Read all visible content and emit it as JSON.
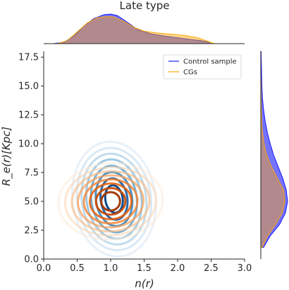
{
  "chart_data": {
    "type": "kde-joint",
    "title": "Late type",
    "xlabel": "n(r)",
    "ylabel": "R_e(r)[Kpc]",
    "xlim": [
      0.0,
      3.0
    ],
    "ylim": [
      0.0,
      18.0
    ],
    "xticks": [
      "0.0",
      "0.5",
      "1.0",
      "1.5",
      "2.0",
      "2.5",
      "3.0"
    ],
    "yticks": [
      "0.0",
      "2.5",
      "5.0",
      "7.5",
      "10.0",
      "12.5",
      "15.0",
      "17.5"
    ],
    "grid": false,
    "legend": {
      "placement": "top-right"
    },
    "series": [
      {
        "name": "Control sample",
        "line_color": "#1a1aff",
        "fill_color": "#0000ff",
        "contour_palette": [
          "#d6e6f4",
          "#c2dbee",
          "#a3cce3",
          "#7fb6d8",
          "#569fce",
          "#2f83bf",
          "#155fa6",
          "#084c92"
        ],
        "center": {
          "x": 1.05,
          "y": 5.2
        },
        "contours": [
          {
            "rx": 0.62,
            "ry": 5.0
          },
          {
            "rx": 0.55,
            "ry": 4.45
          },
          {
            "rx": 0.48,
            "ry": 3.95
          },
          {
            "rx": 0.41,
            "ry": 3.45
          },
          {
            "rx": 0.34,
            "ry": 2.9
          },
          {
            "rx": 0.27,
            "ry": 2.35
          },
          {
            "rx": 0.2,
            "ry": 1.8
          },
          {
            "rx": 0.13,
            "ry": 1.2
          }
        ],
        "marginal_x": {
          "x": [
            0.15,
            0.3,
            0.45,
            0.6,
            0.75,
            0.9,
            1.0,
            1.1,
            1.25,
            1.4,
            1.6,
            1.8,
            2.0,
            2.2,
            2.35,
            2.45,
            2.5
          ],
          "density": [
            0.0,
            0.05,
            0.25,
            0.6,
            0.85,
            0.98,
            1.0,
            0.95,
            0.72,
            0.48,
            0.33,
            0.26,
            0.2,
            0.14,
            0.1,
            0.05,
            0.0
          ]
        },
        "marginal_y": {
          "y": [
            1.0,
            2.0,
            3.0,
            4.0,
            5.0,
            6.0,
            7.0,
            8.0,
            9.0,
            10.0,
            11.0,
            12.0,
            13.0,
            14.0,
            15.0,
            16.0,
            17.0,
            18.0
          ],
          "density": [
            0.1,
            0.35,
            0.7,
            0.92,
            1.0,
            0.95,
            0.82,
            0.65,
            0.48,
            0.35,
            0.24,
            0.16,
            0.1,
            0.06,
            0.04,
            0.03,
            0.02,
            0.01
          ]
        }
      },
      {
        "name": "CGs",
        "line_color": "#ffa500",
        "fill_color": "#ffa500",
        "contour_palette": [
          "#fde9d9",
          "#fdd5b3",
          "#fdbd87",
          "#fca05b",
          "#f7822f",
          "#e65f0d",
          "#c94a03",
          "#a33a04"
        ],
        "center": {
          "x": 1.0,
          "y": 5.0
        },
        "contours": [
          {
            "rx": 0.78,
            "ry": 3.3
          },
          {
            "rx": 0.68,
            "ry": 2.95
          },
          {
            "rx": 0.58,
            "ry": 2.6
          },
          {
            "rx": 0.49,
            "ry": 2.25
          },
          {
            "rx": 0.4,
            "ry": 1.9
          },
          {
            "rx": 0.31,
            "ry": 1.55
          },
          {
            "rx": 0.22,
            "ry": 1.15
          },
          {
            "rx": 0.14,
            "ry": 0.8
          }
        ],
        "marginal_x": {
          "x": [
            0.2,
            0.35,
            0.5,
            0.65,
            0.8,
            0.95,
            1.05,
            1.2,
            1.35,
            1.5,
            1.7,
            1.9,
            2.1,
            2.3,
            2.45,
            2.55
          ],
          "density": [
            0.0,
            0.1,
            0.4,
            0.7,
            0.88,
            0.92,
            0.9,
            0.75,
            0.55,
            0.42,
            0.36,
            0.32,
            0.28,
            0.2,
            0.08,
            0.0
          ]
        },
        "marginal_y": {
          "y": [
            1.0,
            2.0,
            3.0,
            4.0,
            5.0,
            6.0,
            7.0,
            8.0,
            9.0,
            10.0,
            11.0,
            12.0,
            13.0,
            14.0,
            15.0,
            16.0,
            17.0
          ],
          "density": [
            0.05,
            0.25,
            0.55,
            0.8,
            0.9,
            0.85,
            0.62,
            0.4,
            0.22,
            0.12,
            0.06,
            0.03,
            0.02,
            0.01,
            0.01,
            0.0,
            0.0
          ]
        }
      }
    ]
  }
}
